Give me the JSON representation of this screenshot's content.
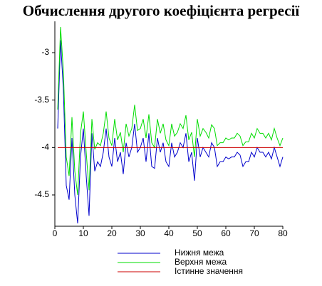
{
  "chart_data": {
    "type": "line",
    "title": "Обчислення другого коефіцієнта регресії",
    "x": [
      1,
      2,
      3,
      4,
      5,
      6,
      7,
      8,
      9,
      10,
      11,
      12,
      13,
      14,
      15,
      16,
      17,
      18,
      19,
      20,
      21,
      22,
      23,
      24,
      25,
      26,
      27,
      28,
      29,
      30,
      31,
      32,
      33,
      34,
      35,
      36,
      37,
      38,
      39,
      40,
      41,
      42,
      43,
      44,
      45,
      46,
      47,
      48,
      49,
      50,
      51,
      52,
      53,
      54,
      55,
      56,
      57,
      58,
      59,
      60,
      61,
      62,
      63,
      64,
      65,
      66,
      67,
      68,
      69,
      70,
      71,
      72,
      73,
      74,
      75,
      76,
      77,
      78,
      79,
      80
    ],
    "series": [
      {
        "name": "Нижня межа",
        "color": "#0000cc",
        "values": [
          -3.8,
          -2.87,
          -3.4,
          -4.4,
          -4.55,
          -3.9,
          -4.5,
          -4.8,
          -4.1,
          -3.8,
          -4.3,
          -4.72,
          -3.85,
          -4.25,
          -4.15,
          -4.2,
          -4.05,
          -3.8,
          -4.1,
          -4.2,
          -3.9,
          -4.15,
          -4.05,
          -4.28,
          -3.95,
          -4.1,
          -4.0,
          -3.75,
          -4.05,
          -4.0,
          -3.9,
          -4.15,
          -3.85,
          -4.2,
          -4.22,
          -3.9,
          -4.05,
          -3.95,
          -4.15,
          -4.2,
          -3.95,
          -4.1,
          -4.05,
          -3.95,
          -4.0,
          -3.85,
          -4.15,
          -4.05,
          -4.35,
          -3.9,
          -4.1,
          -4.0,
          -4.05,
          -4.1,
          -3.95,
          -4.0,
          -4.2,
          -4.15,
          -4.15,
          -4.1,
          -4.12,
          -4.1,
          -4.1,
          -4.05,
          -4.08,
          -4.2,
          -4.15,
          -4.15,
          -4.05,
          -4.1,
          -4.0,
          -4.05,
          -4.05,
          -4.1,
          -4.05,
          -4.12,
          -4.0,
          -4.1,
          -4.2,
          -4.1
        ]
      },
      {
        "name": "Верхня межа",
        "color": "#00dd00",
        "values": [
          -3.6,
          -2.73,
          -3.2,
          -4.1,
          -4.3,
          -3.68,
          -4.25,
          -4.5,
          -3.85,
          -3.62,
          -4.05,
          -4.45,
          -3.7,
          -4.02,
          -3.95,
          -3.98,
          -3.85,
          -3.62,
          -3.9,
          -3.98,
          -3.7,
          -3.92,
          -3.84,
          -4.05,
          -3.75,
          -3.88,
          -3.8,
          -3.55,
          -3.82,
          -3.8,
          -3.7,
          -3.9,
          -3.65,
          -3.95,
          -4.0,
          -3.7,
          -3.85,
          -3.75,
          -3.92,
          -3.98,
          -3.75,
          -3.88,
          -3.84,
          -3.75,
          -3.8,
          -3.66,
          -3.92,
          -3.84,
          -4.1,
          -3.7,
          -3.88,
          -3.8,
          -3.84,
          -3.9,
          -3.76,
          -3.8,
          -3.98,
          -3.95,
          -3.95,
          -3.9,
          -3.92,
          -3.9,
          -3.9,
          -3.85,
          -3.88,
          -3.98,
          -3.94,
          -3.94,
          -3.85,
          -3.9,
          -3.8,
          -3.85,
          -3.85,
          -3.9,
          -3.85,
          -3.92,
          -3.8,
          -3.9,
          -3.98,
          -3.9
        ]
      },
      {
        "name": "Істинне значення",
        "color": "#cc0000",
        "values": [
          -4,
          -4,
          -4,
          -4,
          -4,
          -4,
          -4,
          -4,
          -4,
          -4,
          -4,
          -4,
          -4,
          -4,
          -4,
          -4,
          -4,
          -4,
          -4,
          -4,
          -4,
          -4,
          -4,
          -4,
          -4,
          -4,
          -4,
          -4,
          -4,
          -4,
          -4,
          -4,
          -4,
          -4,
          -4,
          -4,
          -4,
          -4,
          -4,
          -4,
          -4,
          -4,
          -4,
          -4,
          -4,
          -4,
          -4,
          -4,
          -4,
          -4,
          -4,
          -4,
          -4,
          -4,
          -4,
          -4,
          -4,
          -4,
          -4,
          -4,
          -4,
          -4,
          -4,
          -4,
          -4,
          -4,
          -4,
          -4,
          -4,
          -4,
          -4,
          -4,
          -4,
          -4,
          -4,
          -4,
          -4,
          -4,
          -4,
          -4
        ]
      }
    ],
    "xlim": [
      0,
      80
    ],
    "ylim": [
      -4.83,
      -2.67
    ],
    "xticks": [
      0,
      10,
      20,
      30,
      40,
      50,
      60,
      70,
      80
    ],
    "yticks": [
      -3,
      -3.5,
      -4,
      -4.5
    ],
    "grid": false,
    "legend": "bottom"
  }
}
